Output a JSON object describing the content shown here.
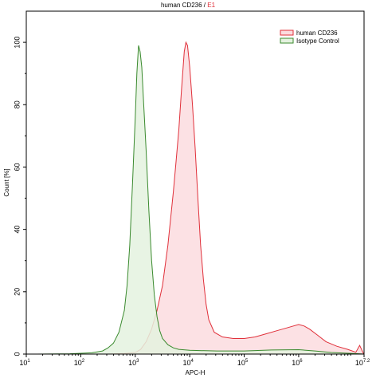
{
  "chart_data": {
    "type": "area",
    "title_main": "human CD236",
    "title_separator": " / ",
    "title_gate": "E1",
    "xlabel": "APC-H",
    "ylabel": "Count [%]",
    "xscale": "log",
    "xlim_exp": [
      1,
      7.2
    ],
    "ylim": [
      0,
      110
    ],
    "x_ticks": [
      {
        "base": "10",
        "exp": "1",
        "value": 1
      },
      {
        "base": "10",
        "exp": "2",
        "value": 2
      },
      {
        "base": "10",
        "exp": "3",
        "value": 3
      },
      {
        "base": "10",
        "exp": "4",
        "value": 4
      },
      {
        "base": "10",
        "exp": "5",
        "value": 5
      },
      {
        "base": "10",
        "exp": "6",
        "value": 6
      },
      {
        "base": "10",
        "exp": "7.2",
        "value": 7.2
      }
    ],
    "y_ticks": [
      "0",
      "20",
      "40",
      "60",
      "80",
      "100"
    ],
    "y_tick_values": [
      0,
      20,
      40,
      60,
      80,
      100
    ],
    "legend": {
      "position": "top-right",
      "entries": [
        "human CD236",
        "Isotype Control"
      ]
    },
    "grid": false,
    "series": [
      {
        "name": "human CD236",
        "line_color": "#e0303a",
        "fill_color": "#fbdcdf",
        "points": [
          [
            2.5,
            0
          ],
          [
            2.8,
            0.2
          ],
          [
            3.0,
            0.5
          ],
          [
            3.1,
            1.5
          ],
          [
            3.2,
            4
          ],
          [
            3.3,
            8
          ],
          [
            3.4,
            14
          ],
          [
            3.5,
            22
          ],
          [
            3.6,
            35
          ],
          [
            3.7,
            52
          ],
          [
            3.75,
            62
          ],
          [
            3.8,
            72
          ],
          [
            3.85,
            85
          ],
          [
            3.9,
            97
          ],
          [
            3.93,
            100
          ],
          [
            3.96,
            99
          ],
          [
            4.0,
            92
          ],
          [
            4.05,
            80
          ],
          [
            4.1,
            66
          ],
          [
            4.15,
            50
          ],
          [
            4.2,
            35
          ],
          [
            4.25,
            24
          ],
          [
            4.3,
            16
          ],
          [
            4.35,
            11
          ],
          [
            4.45,
            7
          ],
          [
            4.6,
            5.5
          ],
          [
            4.8,
            5
          ],
          [
            5.0,
            5
          ],
          [
            5.2,
            5.5
          ],
          [
            5.4,
            6.5
          ],
          [
            5.6,
            7.5
          ],
          [
            5.8,
            8.5
          ],
          [
            6.0,
            9.5
          ],
          [
            6.1,
            9
          ],
          [
            6.2,
            8
          ],
          [
            6.35,
            6
          ],
          [
            6.5,
            4
          ],
          [
            6.7,
            2.5
          ],
          [
            6.9,
            1.5
          ],
          [
            7.05,
            0.6
          ],
          [
            7.12,
            2.8
          ],
          [
            7.18,
            0.5
          ],
          [
            7.2,
            0
          ]
        ]
      },
      {
        "name": "Isotype Control",
        "line_color": "#3a8a2e",
        "fill_color": "#e4f2df",
        "points": [
          [
            1.2,
            0
          ],
          [
            1.8,
            0.1
          ],
          [
            2.2,
            0.4
          ],
          [
            2.4,
            1
          ],
          [
            2.5,
            2
          ],
          [
            2.6,
            3.5
          ],
          [
            2.7,
            7
          ],
          [
            2.8,
            14
          ],
          [
            2.85,
            22
          ],
          [
            2.9,
            35
          ],
          [
            2.95,
            55
          ],
          [
            3.0,
            76
          ],
          [
            3.03,
            90
          ],
          [
            3.06,
            99
          ],
          [
            3.09,
            97
          ],
          [
            3.12,
            92
          ],
          [
            3.15,
            82
          ],
          [
            3.2,
            65
          ],
          [
            3.25,
            46
          ],
          [
            3.3,
            30
          ],
          [
            3.35,
            19
          ],
          [
            3.4,
            12
          ],
          [
            3.45,
            7.5
          ],
          [
            3.5,
            5
          ],
          [
            3.6,
            3
          ],
          [
            3.7,
            2
          ],
          [
            3.8,
            1.5
          ],
          [
            4.0,
            1.2
          ],
          [
            4.5,
            1
          ],
          [
            5.0,
            1
          ],
          [
            5.5,
            1.3
          ],
          [
            6.0,
            1.4
          ],
          [
            6.3,
            1
          ],
          [
            6.6,
            0.5
          ],
          [
            7.0,
            0.2
          ],
          [
            7.2,
            0
          ]
        ]
      }
    ]
  }
}
